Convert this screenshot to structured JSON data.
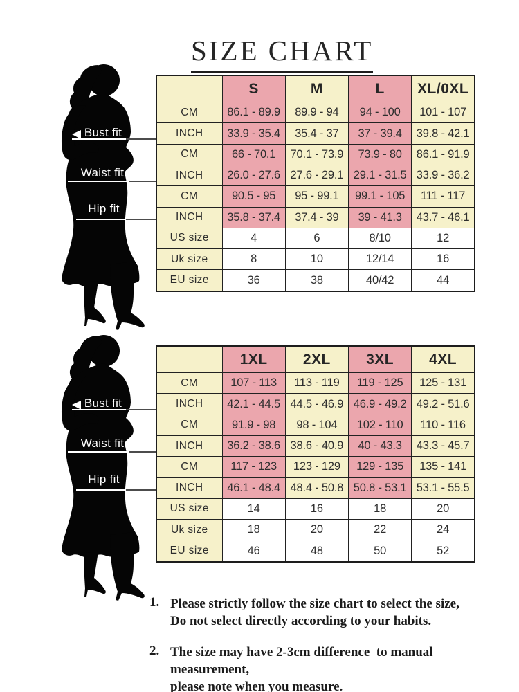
{
  "title": "SIZE CHART",
  "colors": {
    "pink": "#eba6ad",
    "cream": "#f6f1ca",
    "border": "#222222",
    "silhouette": "#050505",
    "leader": "#4c4c4c"
  },
  "figure_labels": {
    "bust": "Bust fit",
    "waist": "Waist fit",
    "hip": "Hip fit"
  },
  "tables": [
    {
      "name": "regular-sizes",
      "header": [
        "",
        "S",
        "M",
        "L",
        "XL/0XL"
      ],
      "rows": [
        {
          "label": "CM",
          "group": "bust",
          "values": [
            "86.1 - 89.9",
            "89.9 - 94",
            "94 - 100",
            "101 - 107"
          ]
        },
        {
          "label": "INCH",
          "group": "bust",
          "values": [
            "33.9 - 35.4",
            "35.4 - 37",
            "37 - 39.4",
            "39.8 - 42.1"
          ]
        },
        {
          "label": "CM",
          "group": "waist",
          "values": [
            "66 - 70.1",
            "70.1 - 73.9",
            "73.9 - 80",
            "86.1 - 91.9"
          ]
        },
        {
          "label": "INCH",
          "group": "waist",
          "values": [
            "26.0 - 27.6",
            "27.6 - 29.1",
            "29.1 - 31.5",
            "33.9 - 36.2"
          ]
        },
        {
          "label": "CM",
          "group": "hip",
          "values": [
            "90.5 - 95",
            "95 - 99.1",
            "99.1 - 105",
            "111 - 117"
          ]
        },
        {
          "label": "INCH",
          "group": "hip",
          "values": [
            "35.8 - 37.4",
            "37.4 - 39",
            "39 - 41.3",
            "43.7 - 46.1"
          ]
        },
        {
          "label": "US size",
          "group": "sizes",
          "values": [
            "4",
            "6",
            "8/10",
            "12"
          ]
        },
        {
          "label": "Uk size",
          "group": "sizes",
          "values": [
            "8",
            "10",
            "12/14",
            "16"
          ]
        },
        {
          "label": "EU size",
          "group": "sizes",
          "values": [
            "36",
            "38",
            "40/42",
            "44"
          ]
        }
      ]
    },
    {
      "name": "plus-sizes",
      "header": [
        "",
        "1XL",
        "2XL",
        "3XL",
        "4XL"
      ],
      "rows": [
        {
          "label": "CM",
          "group": "bust",
          "values": [
            "107 - 113",
            "113 - 119",
            "119 - 125",
            "125 - 131"
          ]
        },
        {
          "label": "INCH",
          "group": "bust",
          "values": [
            "42.1 - 44.5",
            "44.5 - 46.9",
            "46.9 - 49.2",
            "49.2 - 51.6"
          ]
        },
        {
          "label": "CM",
          "group": "waist",
          "values": [
            "91.9 - 98",
            "98 - 104",
            "102 - 110",
            "110 - 116"
          ]
        },
        {
          "label": "INCH",
          "group": "waist",
          "values": [
            "36.2 - 38.6",
            "38.6 - 40.9",
            "40 - 43.3",
            "43.3 - 45.7"
          ]
        },
        {
          "label": "CM",
          "group": "hip",
          "values": [
            "117 - 123",
            "123 - 129",
            "129 - 135",
            "135 - 141"
          ]
        },
        {
          "label": "INCH",
          "group": "hip",
          "values": [
            "46.1 - 48.4",
            "48.4 - 50.8",
            "50.8 - 53.1",
            "53.1 - 55.5"
          ]
        },
        {
          "label": "US size",
          "group": "sizes",
          "values": [
            "14",
            "16",
            "18",
            "20"
          ]
        },
        {
          "label": "Uk size",
          "group": "sizes",
          "values": [
            "18",
            "20",
            "22",
            "24"
          ]
        },
        {
          "label": "EU size",
          "group": "sizes",
          "values": [
            "46",
            "48",
            "50",
            "52"
          ]
        }
      ]
    }
  ],
  "notes": [
    {
      "num": "1.",
      "lines": [
        "Please strictly follow the size chart to select the size,",
        "Do not select directly according to your habits."
      ]
    },
    {
      "num": "2.",
      "lines": [
        "The size may have 2-3cm difference  to manual measurement,",
        "please note when you measure."
      ]
    }
  ]
}
